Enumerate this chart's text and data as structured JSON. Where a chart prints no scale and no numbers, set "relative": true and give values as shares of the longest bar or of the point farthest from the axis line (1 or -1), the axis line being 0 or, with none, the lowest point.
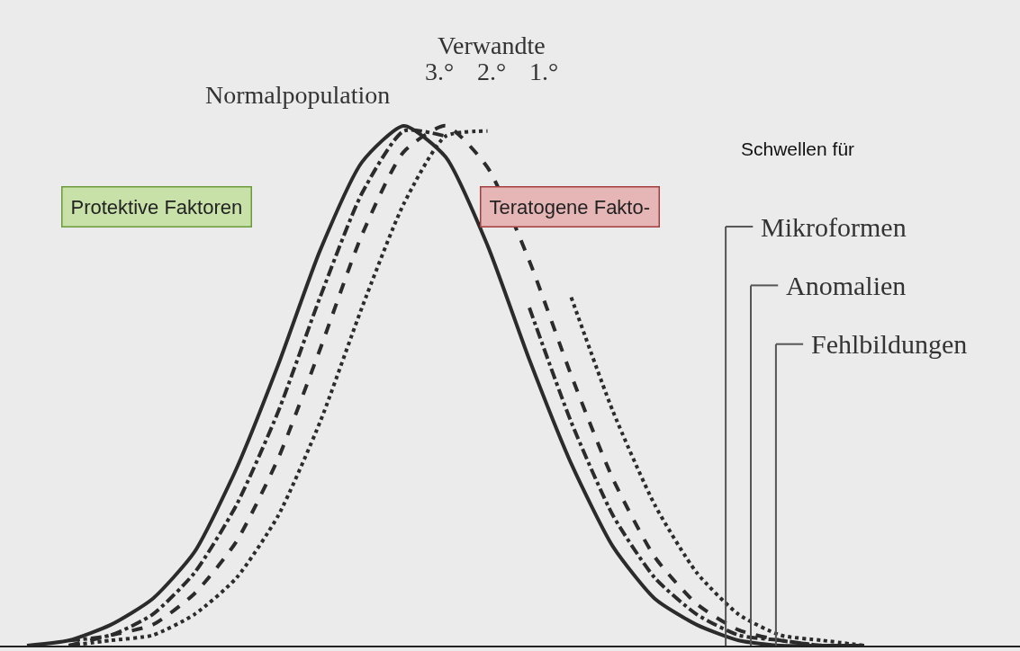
{
  "chart_data": {
    "type": "line",
    "relative": true,
    "legend": false,
    "categories": [
      null,
      null,
      null,
      null,
      null,
      null,
      null,
      null,
      null,
      null,
      null,
      null,
      null,
      null,
      null,
      null,
      null,
      null,
      null,
      null,
      null
    ],
    "series": [
      {
        "name": "Normalpopulation",
        "color": "#2b2b2b",
        "line_style": "solid",
        "values": [
          0,
          0.01,
          0.04,
          0.09,
          0.18,
          0.34,
          0.54,
          0.76,
          0.93,
          1,
          0.94,
          0.77,
          0.55,
          0.35,
          0.19,
          0.09,
          0.04,
          0.01,
          0,
          0,
          0
        ]
      },
      {
        "name": "3.°",
        "color": "#2b2b2b",
        "line_style": "dashdot",
        "values": [
          null,
          0.01,
          0.02,
          0.06,
          0.14,
          0.27,
          0.45,
          0.67,
          0.87,
          0.99,
          0.98,
          null,
          0.65,
          0.43,
          0.25,
          0.13,
          0.06,
          0.02,
          0.01,
          0,
          0
        ]
      },
      {
        "name": "2.°",
        "color": "#2b2b2b",
        "line_style": "dashed",
        "values": [
          null,
          0,
          0.02,
          0.04,
          0.1,
          0.2,
          0.36,
          0.57,
          0.79,
          0.95,
          1,
          0.92,
          0.74,
          0.52,
          0.32,
          0.17,
          0.08,
          0.03,
          0.01,
          0,
          0
        ]
      },
      {
        "name": "1.°",
        "color": "#2b2b2b",
        "line_style": "dotted",
        "values": [
          null,
          0,
          0.01,
          0.02,
          0.06,
          0.13,
          0.25,
          0.43,
          0.65,
          0.85,
          0.98,
          0.99,
          null,
          0.67,
          0.45,
          0.27,
          0.14,
          0.06,
          0.02,
          0.01,
          0
        ]
      }
    ],
    "annotations": [
      "Verwandte",
      "Schwellen für",
      "Protektive Faktoren",
      "Teratogene Fakto-",
      "Mikroformen",
      "Anomalien",
      "Fehlbildungen"
    ]
  }
}
